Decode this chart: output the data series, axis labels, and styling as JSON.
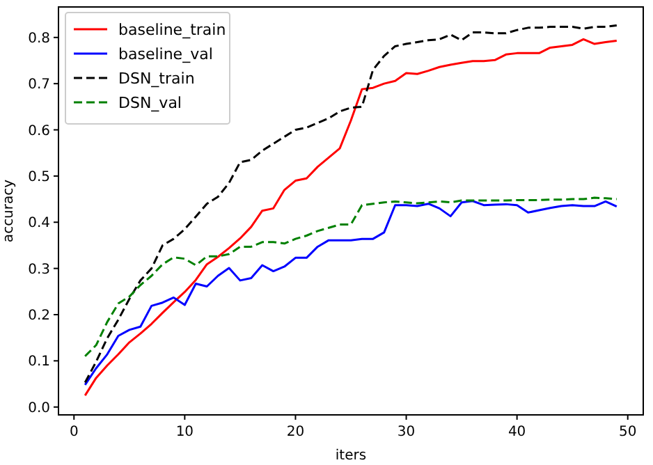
{
  "chart_data": {
    "type": "line",
    "xlabel": "iters",
    "ylabel": "accuracy",
    "x": [
      1,
      2,
      3,
      4,
      5,
      6,
      7,
      8,
      9,
      10,
      11,
      12,
      13,
      14,
      15,
      16,
      17,
      18,
      19,
      20,
      21,
      22,
      23,
      24,
      25,
      26,
      27,
      28,
      29,
      30,
      31,
      32,
      33,
      34,
      35,
      36,
      37,
      38,
      39,
      40,
      41,
      42,
      43,
      44,
      45,
      46,
      47,
      48,
      49
    ],
    "series": [
      {
        "name": "baseline_train",
        "color": "#ff0000",
        "line_style": "solid",
        "values": [
          0.025,
          0.063,
          0.09,
          0.114,
          0.14,
          0.159,
          0.18,
          0.204,
          0.227,
          0.249,
          0.275,
          0.309,
          0.325,
          0.344,
          0.365,
          0.39,
          0.425,
          0.43,
          0.47,
          0.49,
          0.495,
          0.52,
          0.54,
          0.56,
          0.62,
          0.688,
          0.691,
          0.7,
          0.706,
          0.723,
          0.721,
          0.728,
          0.736,
          0.741,
          0.745,
          0.749,
          0.749,
          0.751,
          0.763,
          0.766,
          0.766,
          0.766,
          0.778,
          0.781,
          0.784,
          0.796,
          0.786,
          0.79,
          0.793
        ]
      },
      {
        "name": "baseline_val",
        "color": "#0000ff",
        "line_style": "solid",
        "values": [
          0.048,
          0.084,
          0.114,
          0.154,
          0.167,
          0.174,
          0.219,
          0.226,
          0.237,
          0.221,
          0.267,
          0.261,
          0.284,
          0.301,
          0.274,
          0.279,
          0.307,
          0.294,
          0.304,
          0.323,
          0.323,
          0.347,
          0.361,
          0.361,
          0.361,
          0.364,
          0.364,
          0.378,
          0.437,
          0.437,
          0.435,
          0.44,
          0.43,
          0.413,
          0.443,
          0.446,
          0.437,
          0.438,
          0.439,
          0.437,
          0.421,
          0.426,
          0.431,
          0.435,
          0.437,
          0.435,
          0.435,
          0.445,
          0.434
        ]
      },
      {
        "name": "DSN_train",
        "color": "#000000",
        "line_style": "dashed",
        "values": [
          0.053,
          0.098,
          0.149,
          0.189,
          0.234,
          0.274,
          0.3,
          0.35,
          0.364,
          0.385,
          0.412,
          0.44,
          0.455,
          0.485,
          0.53,
          0.535,
          0.555,
          0.57,
          0.585,
          0.6,
          0.605,
          0.615,
          0.625,
          0.64,
          0.648,
          0.65,
          0.73,
          0.76,
          0.781,
          0.786,
          0.79,
          0.794,
          0.796,
          0.806,
          0.794,
          0.811,
          0.811,
          0.809,
          0.809,
          0.816,
          0.821,
          0.821,
          0.823,
          0.823,
          0.823,
          0.819,
          0.823,
          0.823,
          0.826
        ]
      },
      {
        "name": "DSN_val",
        "color": "#008000",
        "line_style": "dashed",
        "values": [
          0.11,
          0.134,
          0.184,
          0.224,
          0.239,
          0.264,
          0.284,
          0.309,
          0.324,
          0.321,
          0.307,
          0.326,
          0.326,
          0.331,
          0.347,
          0.347,
          0.357,
          0.357,
          0.354,
          0.364,
          0.371,
          0.381,
          0.388,
          0.395,
          0.395,
          0.437,
          0.44,
          0.443,
          0.445,
          0.443,
          0.441,
          0.443,
          0.445,
          0.443,
          0.447,
          0.447,
          0.447,
          0.447,
          0.447,
          0.448,
          0.448,
          0.448,
          0.449,
          0.449,
          0.45,
          0.45,
          0.453,
          0.452,
          0.45
        ]
      }
    ],
    "xlim": [
      -1.4,
      51.4
    ],
    "ylim": [
      -0.017,
      0.866
    ],
    "xticks": [
      0,
      10,
      20,
      30,
      40,
      50
    ],
    "yticks": [
      {
        "value": 0,
        "label": "0.0"
      },
      {
        "value": 0.1,
        "label": "0.1"
      },
      {
        "value": 0.2,
        "label": "0.2"
      },
      {
        "value": 0.3,
        "label": "0.3"
      },
      {
        "value": 0.4,
        "label": "0.4"
      },
      {
        "value": 0.5,
        "label": "0.5"
      },
      {
        "value": 0.6,
        "label": "0.6"
      },
      {
        "value": 0.7,
        "label": "0.7"
      },
      {
        "value": 0.8,
        "label": "0.8"
      }
    ],
    "legend": "top left",
    "grid": false
  }
}
